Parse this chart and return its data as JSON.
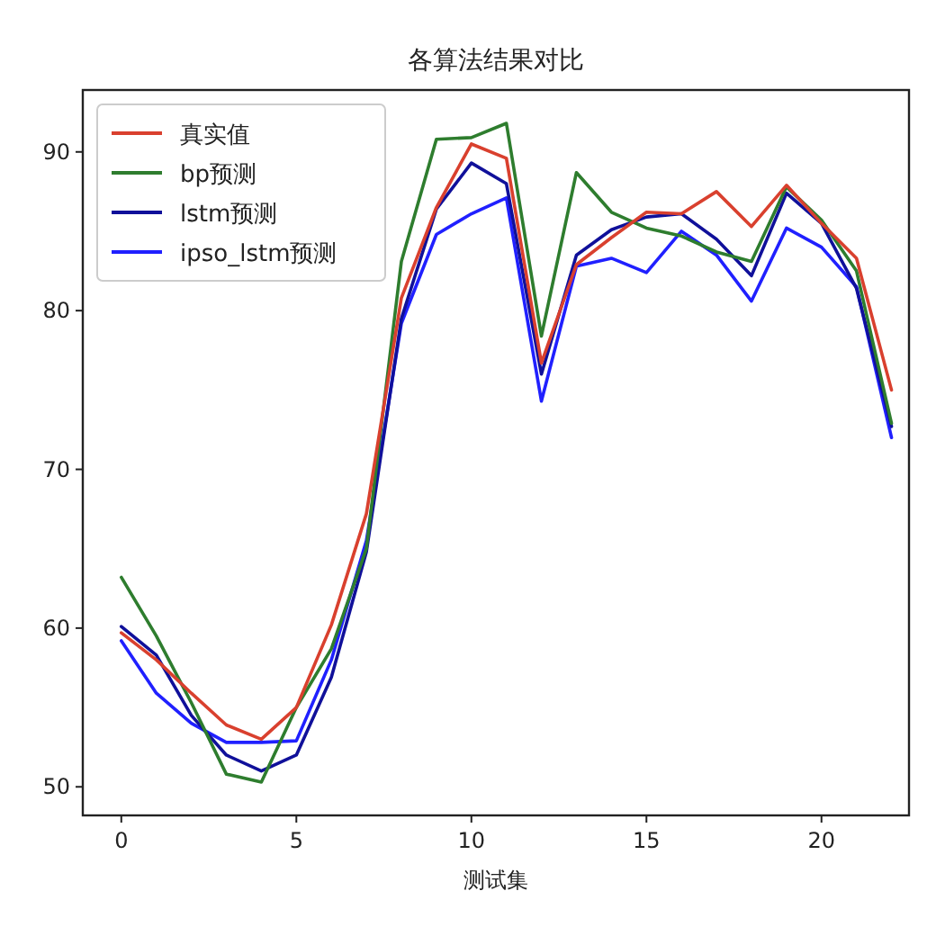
{
  "chart_data": {
    "type": "line",
    "title": "各算法结果对比",
    "xlabel": "测试集",
    "x": [
      0,
      1,
      2,
      3,
      4,
      5,
      6,
      7,
      8,
      9,
      10,
      11,
      12,
      13,
      14,
      15,
      16,
      17,
      18,
      19,
      20,
      21,
      22
    ],
    "series": [
      {
        "name": "真实值",
        "color": "#d9402e",
        "values": [
          59.7,
          58.0,
          55.9,
          53.9,
          53.0,
          55.0,
          60.2,
          67.2,
          80.8,
          86.5,
          90.5,
          89.6,
          76.7,
          82.9,
          84.6,
          86.2,
          86.1,
          87.5,
          85.3,
          87.9,
          85.5,
          83.3,
          75.0
        ]
      },
      {
        "name": "bp预测",
        "color": "#2e7d2e",
        "values": [
          63.2,
          59.5,
          55.3,
          50.8,
          50.3,
          55.0,
          58.7,
          65.0,
          83.1,
          90.8,
          90.9,
          91.8,
          78.4,
          88.7,
          86.2,
          85.2,
          84.7,
          83.7,
          83.1,
          87.8,
          85.7,
          82.5,
          72.9
        ]
      },
      {
        "name": "lstm预测",
        "color": "#10109a",
        "values": [
          60.1,
          58.3,
          54.5,
          52.0,
          51.0,
          52.0,
          56.9,
          64.8,
          79.5,
          86.4,
          89.3,
          88.0,
          76.0,
          83.5,
          85.1,
          85.9,
          86.1,
          84.5,
          82.2,
          87.4,
          85.5,
          81.4,
          72.7
        ]
      },
      {
        "name": "ipso_lstm预测",
        "color": "#2020ff",
        "values": [
          59.2,
          55.9,
          54.0,
          52.8,
          52.8,
          52.9,
          58.0,
          65.5,
          79.2,
          84.8,
          86.1,
          87.1,
          74.3,
          82.8,
          83.3,
          82.4,
          85.0,
          83.5,
          80.6,
          85.2,
          84.0,
          81.5,
          72.0
        ]
      }
    ],
    "xlim": [
      -1.1,
      22.5
    ],
    "ylim": [
      48.2,
      93.9
    ],
    "xticks": [
      0,
      5,
      10,
      15,
      20
    ],
    "yticks": [
      50,
      60,
      70,
      80,
      90
    ],
    "grid": false,
    "legend": "top left",
    "line_style": "solid",
    "marker": "none"
  }
}
